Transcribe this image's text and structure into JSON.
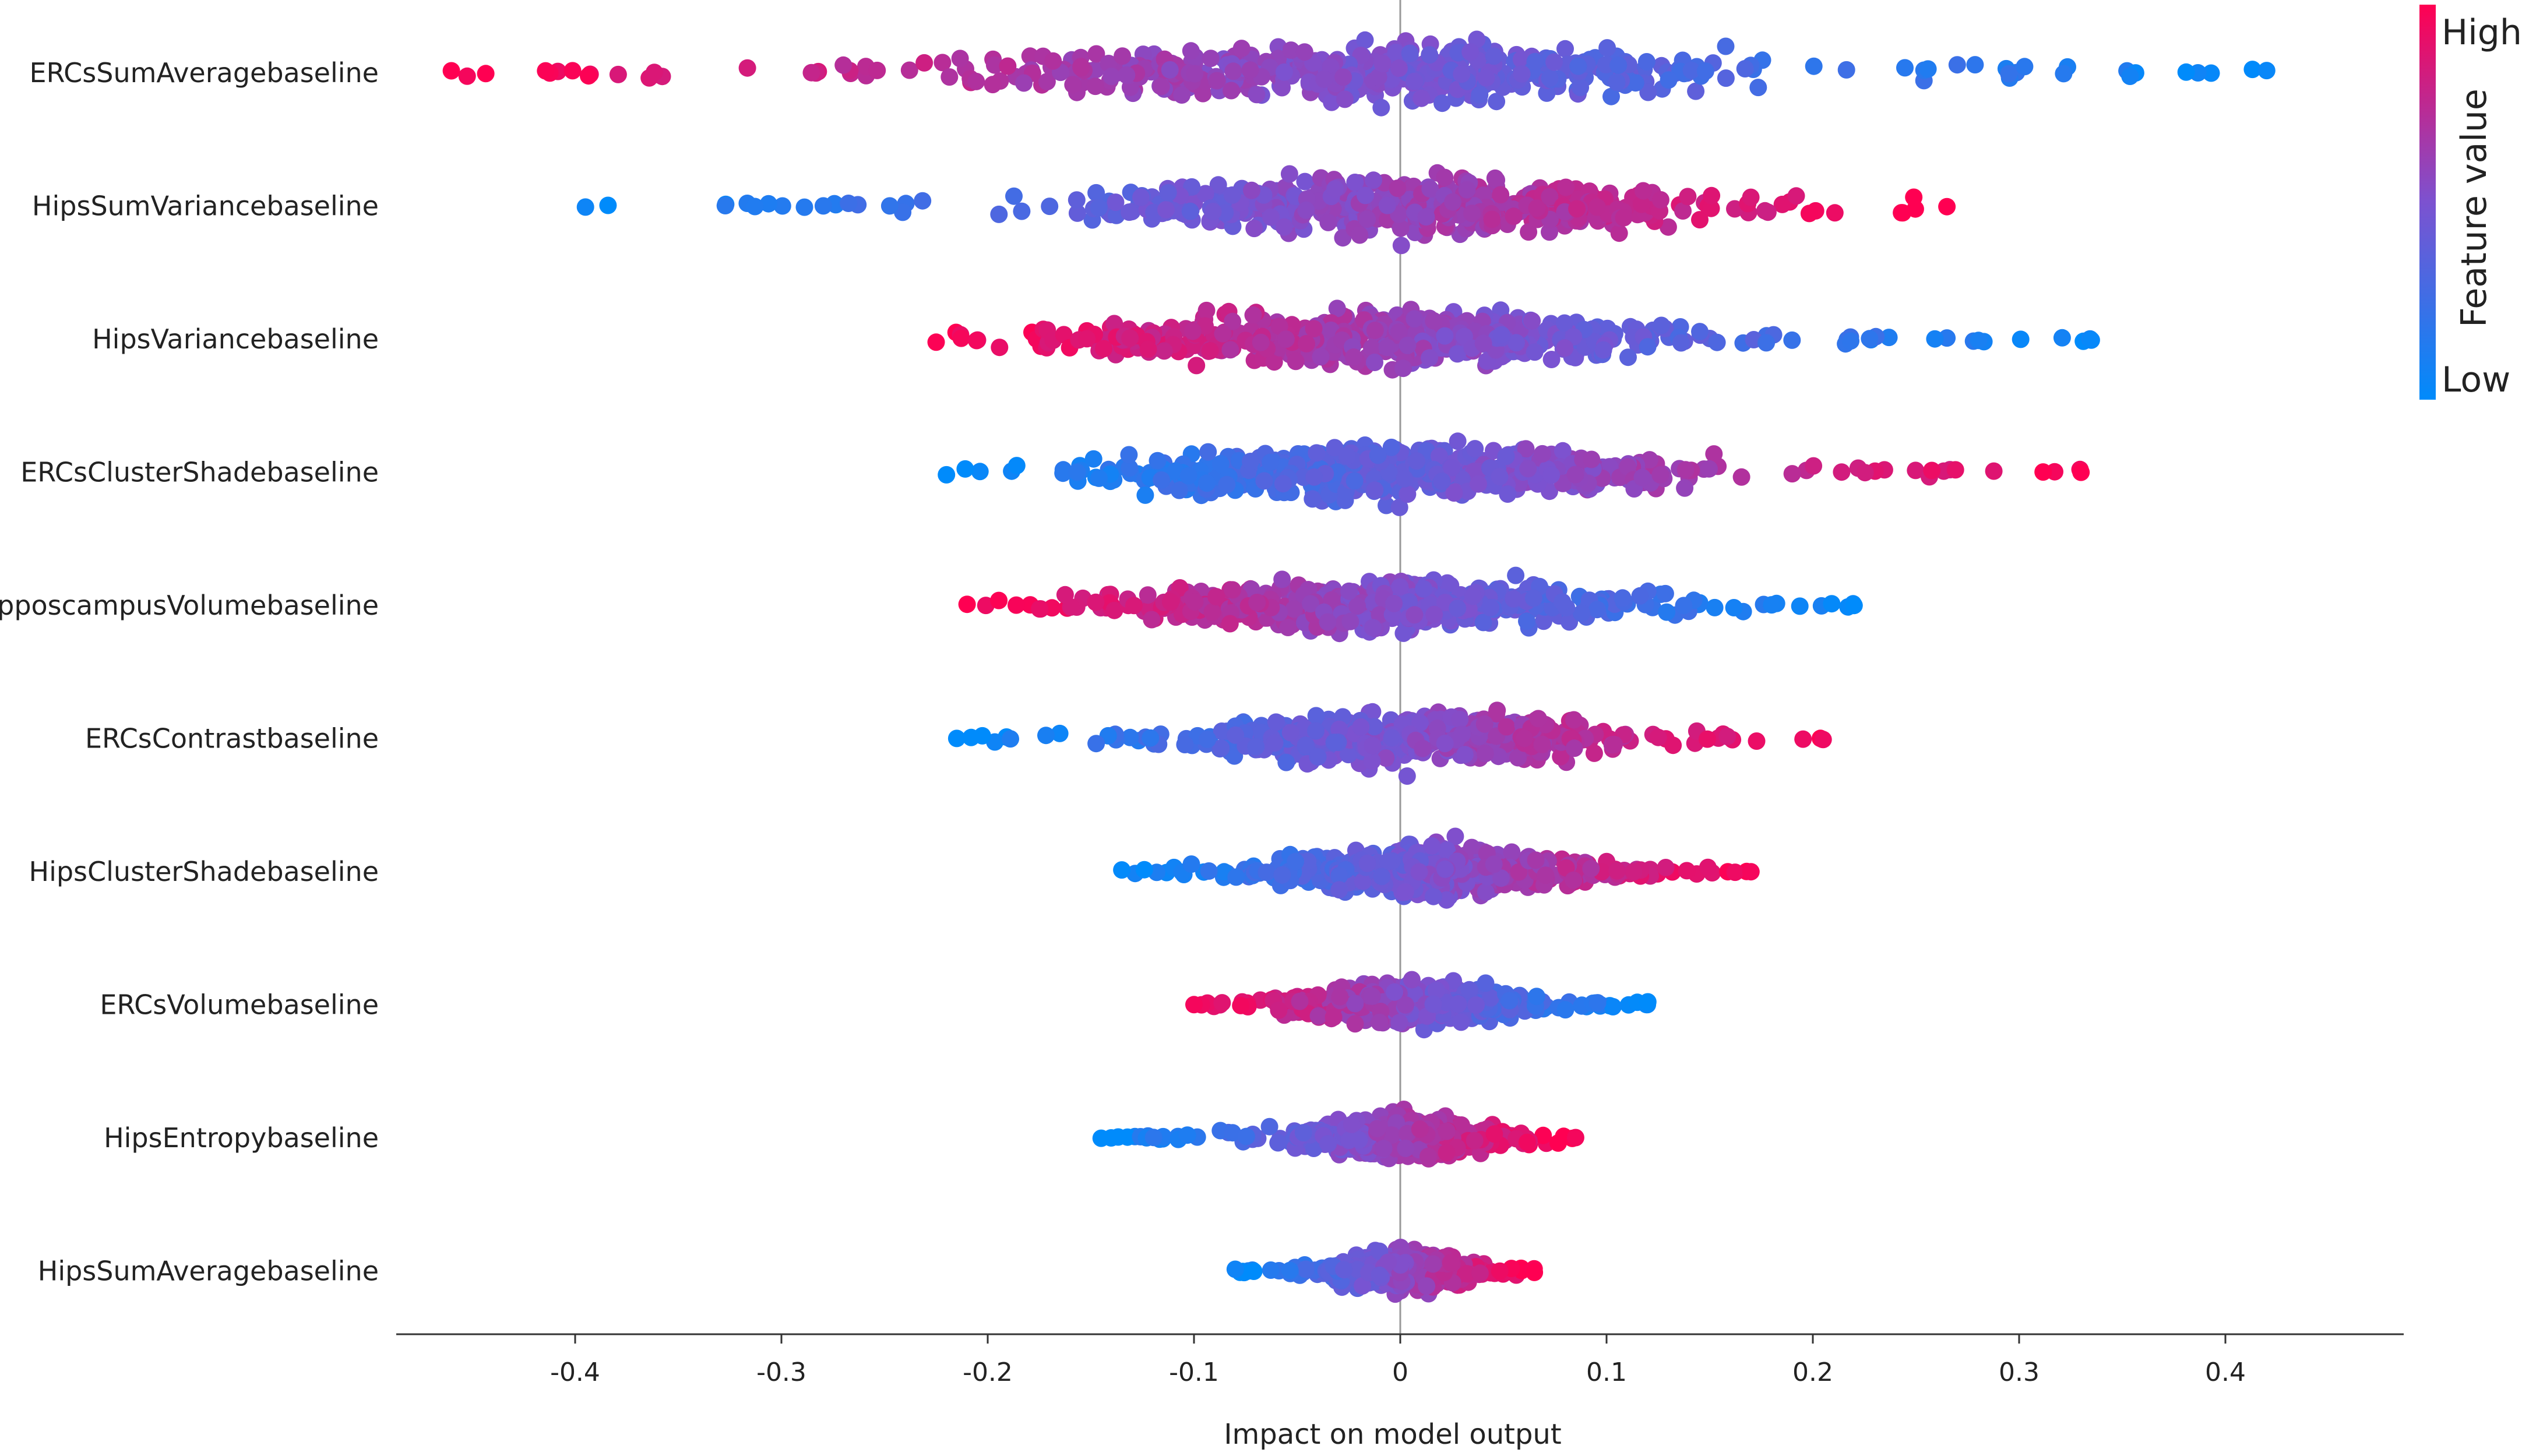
{
  "chart_data": {
    "type": "scatter",
    "subtype": "shap-beeswarm",
    "xlabel": "Impact on model output",
    "ylabel": "",
    "xlim": [
      -0.49,
      0.49
    ],
    "xticks": [
      -0.4,
      -0.3,
      -0.2,
      -0.1,
      0,
      0.1,
      0.2,
      0.3,
      0.4
    ],
    "xtick_labels": [
      "-0.4",
      "-0.3",
      "-0.2",
      "-0.1",
      "0",
      "0.1",
      "0.2",
      "0.3",
      "0.4"
    ],
    "grid": false,
    "zero_line": true,
    "colorbar": {
      "title": "Feature value",
      "high_label": "High",
      "low_label": "Low",
      "high_color": "#ff0052",
      "low_color": "#008bfb",
      "placement": "right"
    },
    "features": [
      {
        "name": "ERCsSumAveragebaseline",
        "min": -0.46,
        "max": 0.42,
        "q_low": -0.2,
        "q_high": 0.17,
        "high_side": "negative",
        "spread": 1.0
      },
      {
        "name": "HipsSumVariancebaseline",
        "min": -0.395,
        "max": 0.265,
        "q_low": -0.15,
        "q_high": 0.16,
        "high_side": "positive",
        "spread": 1.0
      },
      {
        "name": "HipsVariancebaseline",
        "min": -0.225,
        "max": 0.335,
        "q_low": -0.17,
        "q_high": 0.15,
        "high_side": "negative",
        "spread": 1.0
      },
      {
        "name": "ERCsClusterShadebaseline",
        "min": -0.22,
        "max": 0.33,
        "q_low": -0.15,
        "q_high": 0.15,
        "high_side": "positive",
        "spread": 1.0
      },
      {
        "name": "HipposcampusVolumebaseline",
        "min": -0.21,
        "max": 0.22,
        "q_low": -0.14,
        "q_high": 0.12,
        "high_side": "negative",
        "spread": 1.0
      },
      {
        "name": "ERCsContrastbaseline",
        "min": -0.215,
        "max": 0.205,
        "q_low": -0.1,
        "q_high": 0.11,
        "high_side": "positive",
        "spread": 0.95
      },
      {
        "name": "HipsClusterShadebaseline",
        "min": -0.135,
        "max": 0.17,
        "q_low": -0.07,
        "q_high": 0.1,
        "high_side": "positive",
        "spread": 0.9
      },
      {
        "name": "ERCsVolumebaseline",
        "min": -0.1,
        "max": 0.12,
        "q_low": -0.06,
        "q_high": 0.07,
        "high_side": "negative",
        "spread": 0.75
      },
      {
        "name": "HipsEntropybaseline",
        "min": -0.145,
        "max": 0.085,
        "q_low": -0.05,
        "q_high": 0.05,
        "high_side": "positive",
        "spread": 0.75
      },
      {
        "name": "HipsSumAveragebaseline",
        "min": -0.08,
        "max": 0.065,
        "q_low": -0.04,
        "q_high": 0.04,
        "high_side": "positive",
        "spread": 0.7
      }
    ]
  }
}
